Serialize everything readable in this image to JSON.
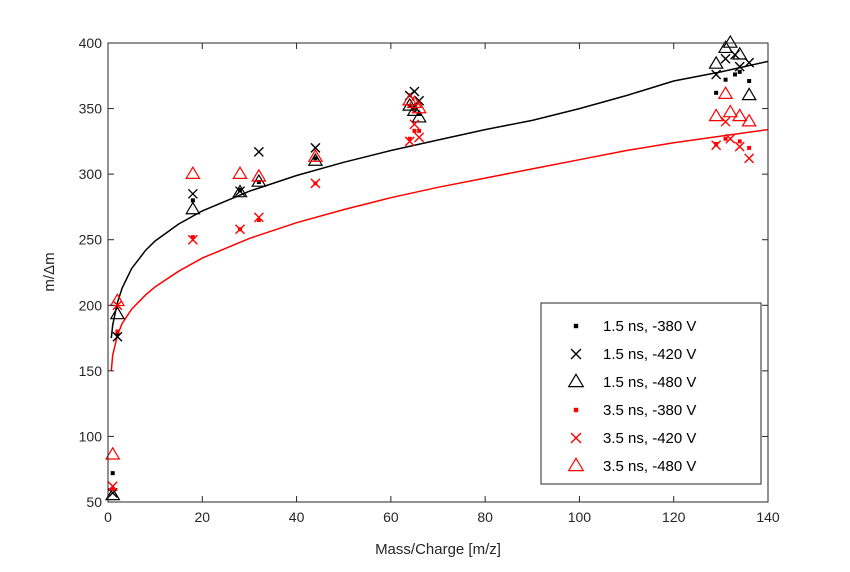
{
  "chart_data": {
    "type": "scatter",
    "title": "",
    "xlabel": "Mass/Charge [m/z]",
    "ylabel": "m/Δm",
    "xlim": [
      0,
      140
    ],
    "ylim": [
      50,
      400
    ],
    "xticks": [
      0,
      20,
      40,
      60,
      80,
      100,
      120,
      140
    ],
    "yticks": [
      50,
      100,
      150,
      200,
      250,
      300,
      350,
      400
    ],
    "grid": false,
    "legend_position": "bottom-right",
    "series": [
      {
        "name": "1.5 ns, -380 V",
        "color": "#000000",
        "marker": "point",
        "points": [
          [
            1,
            72
          ],
          [
            2,
            178
          ],
          [
            18,
            280
          ],
          [
            28,
            288
          ],
          [
            32,
            294
          ],
          [
            44,
            312
          ],
          [
            64,
            352
          ],
          [
            65,
            349
          ],
          [
            66,
            346
          ],
          [
            129,
            362
          ],
          [
            131,
            372
          ],
          [
            133,
            376
          ],
          [
            134,
            378
          ],
          [
            136,
            371
          ]
        ]
      },
      {
        "name": "1.5 ns, -420 V",
        "color": "#000000",
        "marker": "x",
        "points": [
          [
            1,
            57
          ],
          [
            2,
            176
          ],
          [
            18,
            285
          ],
          [
            28,
            287
          ],
          [
            32,
            317
          ],
          [
            44,
            320
          ],
          [
            64,
            360
          ],
          [
            65,
            363
          ],
          [
            66,
            356
          ],
          [
            129,
            376
          ],
          [
            131,
            388
          ],
          [
            133,
            391
          ],
          [
            134,
            382
          ],
          [
            136,
            385
          ]
        ]
      },
      {
        "name": "1.5 ns, -480 V",
        "color": "#000000",
        "marker": "triangle",
        "points": [
          [
            1,
            55
          ],
          [
            2,
            193
          ],
          [
            18,
            273
          ],
          [
            28,
            286
          ],
          [
            32,
            294
          ],
          [
            44,
            310
          ],
          [
            64,
            352
          ],
          [
            65,
            348
          ],
          [
            66,
            343
          ],
          [
            129,
            384
          ],
          [
            131,
            396
          ],
          [
            132,
            400
          ],
          [
            134,
            391
          ],
          [
            136,
            360
          ]
        ]
      },
      {
        "name": "3.5 ns, -380 V",
        "color": "#ff0000",
        "marker": "point",
        "points": [
          [
            1,
            60
          ],
          [
            2,
            180
          ],
          [
            18,
            252
          ],
          [
            28,
            258
          ],
          [
            32,
            265
          ],
          [
            44,
            293
          ],
          [
            64,
            327
          ],
          [
            65,
            333
          ],
          [
            66,
            333
          ],
          [
            129,
            323
          ],
          [
            131,
            327
          ],
          [
            134,
            325
          ],
          [
            136,
            320
          ]
        ]
      },
      {
        "name": "3.5 ns, -420 V",
        "color": "#ff0000",
        "marker": "x",
        "points": [
          [
            1,
            62
          ],
          [
            2,
            200
          ],
          [
            18,
            250
          ],
          [
            28,
            258
          ],
          [
            32,
            267
          ],
          [
            44,
            293
          ],
          [
            64,
            325
          ],
          [
            65,
            338
          ],
          [
            66,
            328
          ],
          [
            129,
            322
          ],
          [
            131,
            340
          ],
          [
            132,
            327
          ],
          [
            134,
            321
          ],
          [
            136,
            312
          ]
        ]
      },
      {
        "name": "3.5 ns, -480 V",
        "color": "#ff0000",
        "marker": "triangle",
        "points": [
          [
            1,
            86
          ],
          [
            2,
            203
          ],
          [
            18,
            300
          ],
          [
            28,
            300
          ],
          [
            32,
            298
          ],
          [
            44,
            313
          ],
          [
            64,
            356
          ],
          [
            65,
            354
          ],
          [
            66,
            350
          ],
          [
            129,
            344
          ],
          [
            131,
            361
          ],
          [
            132,
            347
          ],
          [
            134,
            344
          ],
          [
            136,
            340
          ]
        ]
      }
    ],
    "fits": [
      {
        "color": "#000000",
        "points": [
          [
            0.7,
            175
          ],
          [
            1,
            185
          ],
          [
            2,
            202
          ],
          [
            3,
            213
          ],
          [
            5,
            228
          ],
          [
            8,
            242
          ],
          [
            10,
            249
          ],
          [
            15,
            262
          ],
          [
            20,
            272
          ],
          [
            30,
            287
          ],
          [
            40,
            299
          ],
          [
            50,
            309
          ],
          [
            60,
            318
          ],
          [
            70,
            326
          ],
          [
            80,
            334
          ],
          [
            90,
            341
          ],
          [
            100,
            350
          ],
          [
            110,
            360
          ],
          [
            120,
            371
          ],
          [
            130,
            378
          ],
          [
            140,
            386
          ]
        ]
      },
      {
        "color": "#ff0000",
        "points": [
          [
            0.7,
            150
          ],
          [
            1,
            162
          ],
          [
            2,
            177
          ],
          [
            3,
            186
          ],
          [
            5,
            197
          ],
          [
            8,
            208
          ],
          [
            10,
            214
          ],
          [
            15,
            226
          ],
          [
            20,
            236
          ],
          [
            30,
            251
          ],
          [
            40,
            263
          ],
          [
            50,
            273
          ],
          [
            60,
            282
          ],
          [
            70,
            290
          ],
          [
            80,
            297
          ],
          [
            90,
            304
          ],
          [
            100,
            311
          ],
          [
            110,
            318
          ],
          [
            120,
            324
          ],
          [
            130,
            329
          ],
          [
            140,
            334
          ]
        ]
      }
    ]
  }
}
